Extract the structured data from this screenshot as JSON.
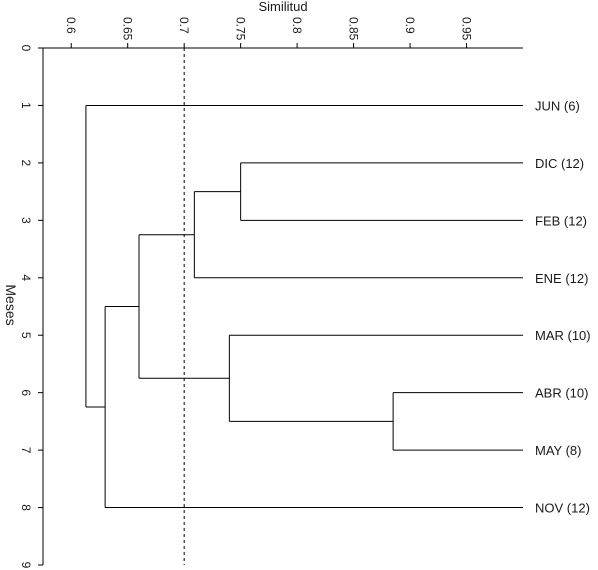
{
  "chart_data": {
    "type": "dendrogram",
    "xlabel": "Similitud",
    "ylabel": "Meses",
    "xlim": [
      0.575,
      1.0
    ],
    "x_ticks": [
      {
        "value": 0.6,
        "label": "0.6"
      },
      {
        "value": 0.65,
        "label": "0.65"
      },
      {
        "value": 0.7,
        "label": "0.7"
      },
      {
        "value": 0.75,
        "label": "0.75"
      },
      {
        "value": 0.8,
        "label": "0.8"
      },
      {
        "value": 0.85,
        "label": "0.85"
      },
      {
        "value": 0.9,
        "label": "0.9"
      },
      {
        "value": 0.95,
        "label": "0.95"
      }
    ],
    "ylim": [
      0,
      9
    ],
    "y_ticks": [
      "0",
      "1",
      "2",
      "3",
      "4",
      "5",
      "6",
      "7",
      "8",
      "9"
    ],
    "leaves": [
      {
        "label": "JUN (6)",
        "y": 1
      },
      {
        "label": "DIC (12)",
        "y": 2
      },
      {
        "label": "FEB (12)",
        "y": 3
      },
      {
        "label": "ENE (12)",
        "y": 4
      },
      {
        "label": "MAR (10)",
        "y": 5
      },
      {
        "label": "ABR (10)",
        "y": 6
      },
      {
        "label": "MAY (8)",
        "y": 7
      },
      {
        "label": "NOV (12)",
        "y": 8
      }
    ],
    "merges": [
      {
        "members": [
          "DIC (12)",
          "FEB (12)"
        ],
        "similarity": 0.75
      },
      {
        "members": [
          "ABR (10)",
          "MAY (8)"
        ],
        "similarity": 0.885
      },
      {
        "members": [
          "DIC (12)",
          "FEB (12)",
          "ENE (12)"
        ],
        "similarity": 0.709
      },
      {
        "members": [
          "MAR (10)",
          "ABR (10)",
          "MAY (8)"
        ],
        "similarity": 0.74
      },
      {
        "members": [
          "DIC (12)",
          "FEB (12)",
          "ENE (12)",
          "MAR (10)",
          "ABR (10)",
          "MAY (8)"
        ],
        "similarity": 0.66
      },
      {
        "members": [
          "DIC (12)",
          "FEB (12)",
          "ENE (12)",
          "MAR (10)",
          "ABR (10)",
          "MAY (8)",
          "NOV (12)"
        ],
        "similarity": 0.63
      },
      {
        "members": [
          "JUN (6)",
          "DIC (12)",
          "FEB (12)",
          "ENE (12)",
          "MAR (10)",
          "ABR (10)",
          "MAY (8)",
          "NOV (12)"
        ],
        "similarity": 0.613
      }
    ],
    "cut_line": 0.7,
    "grid": false
  }
}
